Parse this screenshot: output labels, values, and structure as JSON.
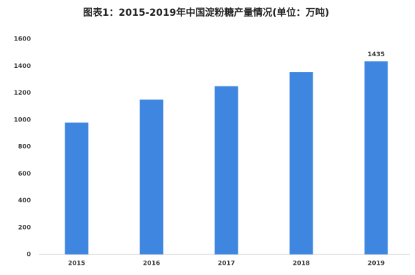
{
  "chart_data": {
    "type": "bar",
    "title": "图表1：2015-2019年中国淀粉糖产量情况(单位：万吨)",
    "categories": [
      "2015",
      "2016",
      "2017",
      "2018",
      "2019"
    ],
    "values": [
      980,
      1150,
      1250,
      1355,
      1435
    ],
    "value_labels": [
      null,
      null,
      null,
      null,
      "1435"
    ],
    "color": "#3f86e0",
    "ylim": [
      0,
      1600
    ],
    "yticks": [
      0,
      200,
      400,
      600,
      800,
      1000,
      1200,
      1400,
      1600
    ],
    "grid": false
  }
}
